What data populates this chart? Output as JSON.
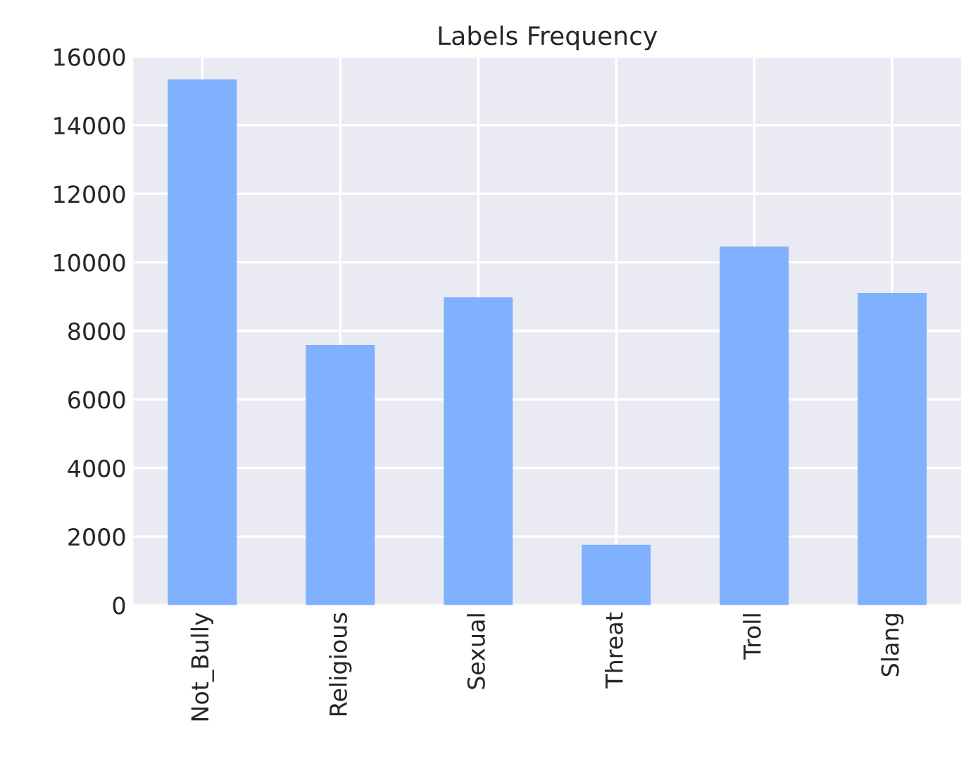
{
  "chart_data": {
    "type": "bar",
    "title": "Labels Frequency",
    "categories": [
      "Not_Bully",
      "Religious",
      "Sexual",
      "Threat",
      "Troll",
      "Slang"
    ],
    "values": [
      15340,
      7590,
      8980,
      1760,
      10460,
      9110
    ],
    "color": "#80b1ff",
    "ylim": [
      0,
      16000
    ],
    "yticks": [
      0,
      2000,
      4000,
      6000,
      8000,
      10000,
      12000,
      14000,
      16000
    ],
    "grid": true
  }
}
